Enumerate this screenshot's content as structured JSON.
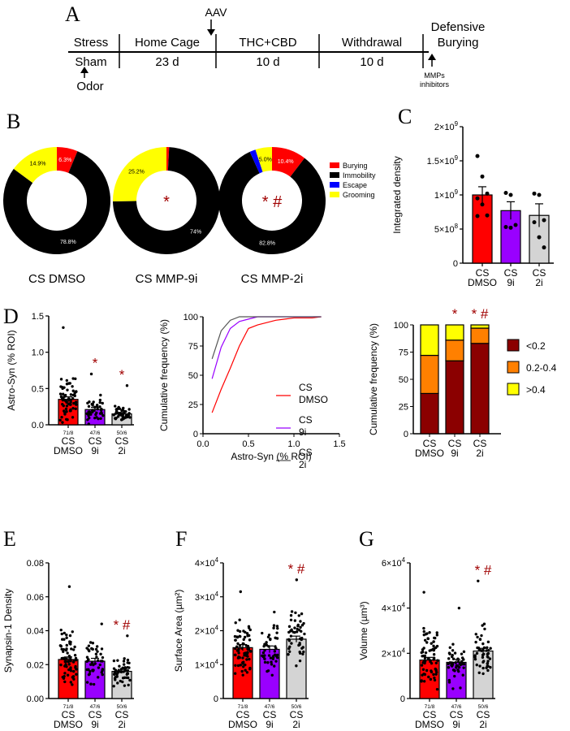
{
  "colors": {
    "red": "#ff0000",
    "purple": "#9900ff",
    "gray": "#d4d4d4",
    "dark_red": "#8b0000",
    "orange": "#ff8000",
    "yellow": "#ffff00",
    "black": "#000000",
    "blue": "#0000ff",
    "sig": "#a00000"
  },
  "panel_letters": {
    "a": "A",
    "b": "B",
    "c": "C",
    "d": "D",
    "e": "E",
    "f": "F",
    "g": "G"
  },
  "timeline": {
    "phases": [
      "Stress",
      "Home Cage",
      "THC+CBD",
      "Withdrawal",
      "Defensive"
    ],
    "phase_extra": "Burying",
    "sub": [
      "Sham",
      "23 d",
      "10 d",
      "10 d"
    ],
    "aav": "AAV",
    "odor": "Odor",
    "mmp_line1": "MMPs",
    "mmp_line2": "inhibitors"
  },
  "sig": {
    "star": "*",
    "hash": "#"
  },
  "counts": [
    "71/8",
    "47/6",
    "50/6"
  ],
  "groups": [
    {
      "l1": "CS",
      "l2": "DMSO"
    },
    {
      "l1": "CS",
      "l2": "9i"
    },
    {
      "l1": "CS",
      "l2": "2i"
    }
  ],
  "chart_data": [
    {
      "id": "B",
      "type": "pie",
      "legend": [
        "Burying",
        "Immobility",
        "Escape",
        "Grooming"
      ],
      "donuts": [
        {
          "label": "CS DMSO",
          "values": [
            6.3,
            78.8,
            0,
            14.9
          ],
          "value_labels": [
            "6.3%",
            "78.8%",
            "",
            "14.9%"
          ],
          "sig": ""
        },
        {
          "label": "CS MMP-9i",
          "values": [
            0.8,
            74.0,
            0,
            25.2
          ],
          "value_labels": [
            "",
            "74%",
            "",
            "25.2%"
          ],
          "sig": "*"
        },
        {
          "label": "CS MMP-2i",
          "values": [
            10.4,
            82.8,
            1.8,
            5.0
          ],
          "value_labels": [
            "10.4%",
            "82.8%",
            "",
            "5.0%"
          ],
          "sig": "* #"
        }
      ]
    },
    {
      "id": "C",
      "type": "bar",
      "categories": [
        "CS DMSO",
        "CS 9i",
        "CS 2i"
      ],
      "values": [
        1000000000.0,
        770000000.0,
        700000000.0
      ],
      "sem": [
        120000000.0,
        130000000.0,
        170000000.0
      ],
      "points": [
        [
          1570000000.0,
          1270000000.0,
          1020000000.0,
          950000000.0,
          860000000.0,
          700000000.0,
          690000000.0
        ],
        [
          1030000000.0,
          1000000000.0,
          560000000.0,
          530000000.0,
          520000000.0
        ],
        [
          1020000000.0,
          1000000000.0,
          630000000.0,
          600000000.0,
          380000000.0,
          230000000.0
        ]
      ],
      "ylabel": "Integrated density",
      "ylim": [
        0,
        2000000000.0
      ],
      "yticks": [
        {
          "v": 0,
          "m": "0",
          "e": ""
        },
        {
          "v": 500000000.0,
          "m": "5×10",
          "e": "8"
        },
        {
          "v": 1000000000.0,
          "m": "1×10",
          "e": "9"
        },
        {
          "v": 1500000000.0,
          "m": "1.5×10",
          "e": "9"
        },
        {
          "v": 2000000000.0,
          "m": "2×10",
          "e": "9"
        }
      ],
      "sig": [
        "",
        "",
        ""
      ]
    },
    {
      "id": "D1",
      "type": "bar",
      "categories": [
        "CS DMSO",
        "CS 9i",
        "CS 2i"
      ],
      "values": [
        0.35,
        0.21,
        0.15
      ],
      "sem": [
        0.035,
        0.03,
        0.02
      ],
      "n": [
        71,
        47,
        50
      ],
      "mean": [
        0.35,
        0.21,
        0.15
      ],
      "spread": [
        0.2,
        0.12,
        0.07
      ],
      "max": [
        1.34,
        0.7,
        0.54
      ],
      "ylabel": "Astro-Syn (% ROI)",
      "ylim": [
        0,
        1.5
      ],
      "yticks": [
        {
          "v": 0,
          "m": "0.0"
        },
        {
          "v": 0.5,
          "m": "0.5"
        },
        {
          "v": 1.0,
          "m": "1.0"
        },
        {
          "v": 1.5,
          "m": "1.5"
        }
      ],
      "sig": [
        "",
        "*",
        "*"
      ]
    },
    {
      "id": "D2",
      "type": "line",
      "x": [
        0.1,
        0.2,
        0.3,
        0.4,
        0.5,
        0.6,
        0.7,
        0.8,
        0.9,
        1.0,
        1.1,
        1.2,
        1.3
      ],
      "series": [
        {
          "name": "CS DMSO",
          "values": [
            18,
            38,
            56,
            75,
            90,
            93,
            95,
            97,
            98,
            99,
            99,
            99,
            100
          ]
        },
        {
          "name": "CS 9i",
          "values": [
            47,
            74,
            90,
            96,
            98,
            100,
            100,
            100,
            100,
            100,
            100,
            100,
            100
          ]
        },
        {
          "name": "CS 2i",
          "values": [
            64,
            88,
            97,
            100,
            100,
            100,
            100,
            100,
            100,
            100,
            100,
            100,
            100
          ]
        }
      ],
      "xlabel": "Astro-Syn (% ROI)",
      "ylabel": "Cumulative frequency (%)",
      "xlim": [
        0,
        1.5
      ],
      "ylim": [
        0,
        100
      ],
      "xticks": [
        "0.0",
        "0.5",
        "1.0",
        "1.5"
      ],
      "yticks": [
        "0",
        "25",
        "50",
        "75",
        "100"
      ]
    },
    {
      "id": "D3",
      "type": "bar",
      "categories": [
        "CS DMSO",
        "CS 9i",
        "CS 2i"
      ],
      "stack_names": [
        "<0.2",
        "0.2-0.4",
        ">0.4"
      ],
      "stacks": [
        [
          37,
          35,
          28
        ],
        [
          67,
          19,
          14
        ],
        [
          83,
          14,
          3
        ]
      ],
      "ylabel": "Cumulative frequency (%)",
      "ylim": [
        0,
        100
      ],
      "yticks": [
        "0",
        "25",
        "50",
        "75",
        "100"
      ],
      "sig": [
        "",
        "*",
        "* #"
      ]
    },
    {
      "id": "E",
      "type": "bar",
      "categories": [
        "CS DMSO",
        "CS 9i",
        "CS 2i"
      ],
      "values": [
        0.023,
        0.022,
        0.016
      ],
      "sem": [
        0.0015,
        0.0017,
        0.0012
      ],
      "n": [
        71,
        47,
        50
      ],
      "mean": [
        0.023,
        0.022,
        0.016
      ],
      "spread": [
        0.011,
        0.009,
        0.006
      ],
      "max": [
        0.066,
        0.044,
        0.037
      ],
      "ylabel": "Synapsin-1 Density",
      "ylim": [
        0,
        0.08
      ],
      "yticks": [
        {
          "v": 0,
          "m": "0.00"
        },
        {
          "v": 0.02,
          "m": "0.02"
        },
        {
          "v": 0.04,
          "m": "0.04"
        },
        {
          "v": 0.06,
          "m": "0.06"
        },
        {
          "v": 0.08,
          "m": "0.08"
        }
      ],
      "sig": [
        "",
        "",
        "* #"
      ]
    },
    {
      "id": "F",
      "type": "bar",
      "categories": [
        "CS DMSO",
        "CS 9i",
        "CS 2i"
      ],
      "values": [
        15000,
        14500,
        17500
      ],
      "sem": [
        900,
        1000,
        900
      ],
      "n": [
        71,
        47,
        50
      ],
      "mean": [
        15000,
        14500,
        17500
      ],
      "spread": [
        6000,
        5000,
        5500
      ],
      "max": [
        31500,
        25500,
        35000
      ],
      "ylabel": "Surface Area (µm²)",
      "ylim": [
        0,
        40000
      ],
      "yticks": [
        {
          "v": 0,
          "m": "0",
          "e": ""
        },
        {
          "v": 10000,
          "m": "1×10",
          "e": "4"
        },
        {
          "v": 20000,
          "m": "2×10",
          "e": "4"
        },
        {
          "v": 30000,
          "m": "3×10",
          "e": "4"
        },
        {
          "v": 40000,
          "m": "4×10",
          "e": "4"
        }
      ],
      "sig": [
        "",
        "",
        "* #"
      ]
    },
    {
      "id": "G",
      "type": "bar",
      "categories": [
        "CS DMSO",
        "CS 9i",
        "CS 2i"
      ],
      "values": [
        17000,
        16000,
        21000
      ],
      "sem": [
        1200,
        1300,
        1200
      ],
      "n": [
        71,
        47,
        50
      ],
      "mean": [
        17000,
        16000,
        21000
      ],
      "spread": [
        9000,
        7000,
        8000
      ],
      "max": [
        47000,
        40000,
        52000
      ],
      "ylabel": "Volume (µm³)",
      "ylim": [
        0,
        60000
      ],
      "yticks": [
        {
          "v": 0,
          "m": "0",
          "e": ""
        },
        {
          "v": 20000,
          "m": "2×10",
          "e": "4"
        },
        {
          "v": 40000,
          "m": "4×10",
          "e": "4"
        },
        {
          "v": 60000,
          "m": "6×10",
          "e": "4"
        }
      ],
      "sig": [
        "",
        "",
        "* #"
      ]
    }
  ]
}
